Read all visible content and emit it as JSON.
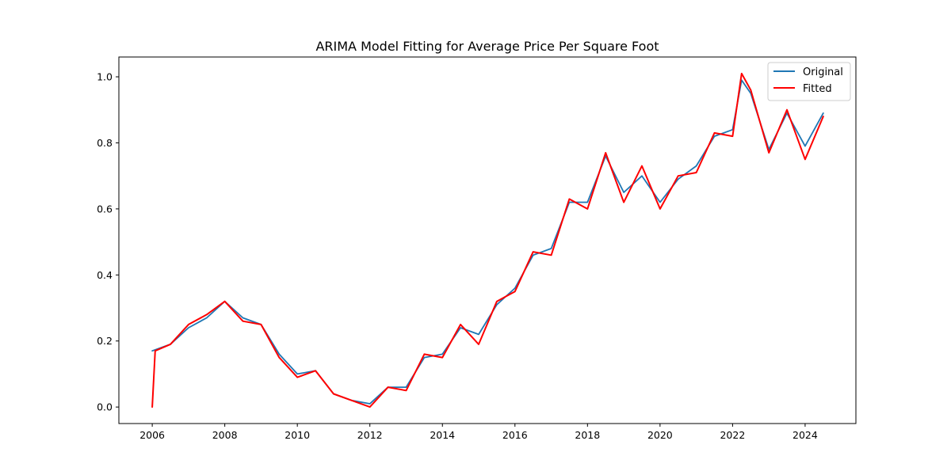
{
  "chart_data": {
    "type": "line",
    "title": "ARIMA Model Fitting for Average Price Per Square Foot",
    "xlabel": "",
    "ylabel": "",
    "xlim": [
      2005.08,
      2025.4
    ],
    "ylim": [
      -0.05,
      1.06
    ],
    "x_ticks": [
      "2006",
      "2008",
      "2010",
      "2012",
      "2014",
      "2016",
      "2018",
      "2020",
      "2022",
      "2024"
    ],
    "y_ticks": [
      "0.0",
      "0.2",
      "0.4",
      "0.6",
      "0.8",
      "1.0"
    ],
    "grid": false,
    "legend_position": "top-right",
    "colors": {
      "original": "#1f77b4",
      "fitted": "#ff0000"
    },
    "series": [
      {
        "name": "Original",
        "x": [
          2006.0,
          2006.5,
          2007.0,
          2007.5,
          2008.0,
          2008.5,
          2009.0,
          2009.5,
          2010.0,
          2010.5,
          2011.0,
          2011.5,
          2012.0,
          2012.5,
          2013.0,
          2013.5,
          2014.0,
          2014.5,
          2015.0,
          2015.5,
          2016.0,
          2016.5,
          2017.0,
          2017.5,
          2018.0,
          2018.5,
          2019.0,
          2019.5,
          2020.0,
          2020.5,
          2021.0,
          2021.5,
          2022.0,
          2022.25,
          2022.5,
          2023.0,
          2023.5,
          2024.0,
          2024.5
        ],
        "values": [
          0.17,
          0.19,
          0.24,
          0.27,
          0.32,
          0.27,
          0.25,
          0.16,
          0.1,
          0.11,
          0.04,
          0.02,
          0.01,
          0.06,
          0.06,
          0.15,
          0.16,
          0.24,
          0.22,
          0.31,
          0.36,
          0.46,
          0.48,
          0.62,
          0.62,
          0.76,
          0.65,
          0.7,
          0.62,
          0.69,
          0.73,
          0.82,
          0.84,
          0.99,
          0.95,
          0.78,
          0.89,
          0.79,
          0.89
        ]
      },
      {
        "name": "Fitted",
        "x": [
          2006.0,
          2006.08,
          2006.5,
          2007.0,
          2007.5,
          2008.0,
          2008.5,
          2009.0,
          2009.5,
          2010.0,
          2010.5,
          2011.0,
          2011.5,
          2012.0,
          2012.5,
          2013.0,
          2013.5,
          2014.0,
          2014.5,
          2015.0,
          2015.5,
          2016.0,
          2016.5,
          2017.0,
          2017.5,
          2018.0,
          2018.5,
          2019.0,
          2019.5,
          2020.0,
          2020.5,
          2021.0,
          2021.5,
          2022.0,
          2022.25,
          2022.5,
          2023.0,
          2023.5,
          2024.0,
          2024.5
        ],
        "values": [
          0.0,
          0.17,
          0.19,
          0.25,
          0.28,
          0.32,
          0.26,
          0.25,
          0.15,
          0.09,
          0.11,
          0.04,
          0.02,
          0.0,
          0.06,
          0.05,
          0.16,
          0.15,
          0.25,
          0.19,
          0.32,
          0.35,
          0.47,
          0.46,
          0.63,
          0.6,
          0.77,
          0.62,
          0.73,
          0.6,
          0.7,
          0.71,
          0.83,
          0.82,
          1.01,
          0.96,
          0.77,
          0.9,
          0.75,
          0.88
        ]
      }
    ]
  }
}
